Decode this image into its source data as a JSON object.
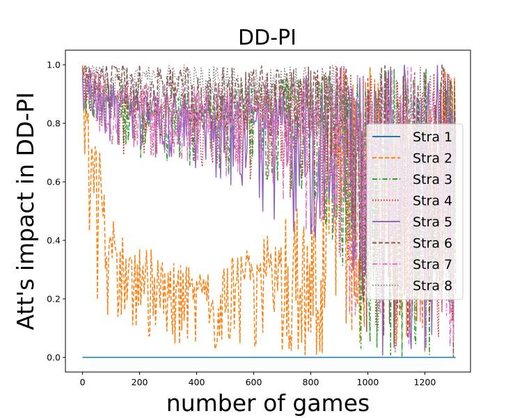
{
  "chart_data": {
    "type": "line",
    "title": "DD-PI",
    "xlabel": "number of games",
    "ylabel": "Att's impact in DD-PI",
    "xlim": [
      -60,
      1360
    ],
    "ylim": [
      -0.05,
      1.05
    ],
    "xticks": [
      0,
      200,
      400,
      600,
      800,
      1000,
      1200
    ],
    "xtick_labels": [
      "0",
      "200",
      "400",
      "600",
      "800",
      "1000",
      "1200"
    ],
    "yticks": [
      0.0,
      0.2,
      0.4,
      0.6,
      0.8,
      1.0
    ],
    "ytick_labels": [
      "0.0",
      "0.2",
      "0.4",
      "0.6",
      "0.8",
      "1.0"
    ],
    "x_range": [
      0,
      1310
    ],
    "grid": false,
    "legend_position": "center-right",
    "series": [
      {
        "name": "Stra 1",
        "color": "#1f77b4",
        "style": "solid",
        "band": {
          "x": [
            0,
            1310
          ],
          "low": [
            0.0,
            0.0
          ],
          "high": [
            0.0,
            0.0
          ]
        }
      },
      {
        "name": "Stra 2",
        "color": "#ff7f0e",
        "style": "dashed",
        "band": {
          "x": [
            0,
            30,
            60,
            100,
            200,
            400,
            600,
            800,
            900,
            970,
            1000,
            1310
          ],
          "low": [
            0.8,
            0.3,
            0.05,
            0.1,
            0.08,
            0.03,
            0.02,
            0.0,
            0.0,
            0.0,
            0.0,
            0.0
          ],
          "high": [
            1.0,
            0.95,
            0.7,
            0.5,
            0.4,
            0.3,
            0.38,
            0.55,
            1.0,
            1.0,
            1.0,
            1.0
          ]
        }
      },
      {
        "name": "Stra 3",
        "color": "#2ca02c",
        "style": "dashdot",
        "band": {
          "x": [
            0,
            100,
            200,
            400,
            600,
            800,
            900,
            970,
            1000,
            1310
          ],
          "low": [
            0.85,
            0.7,
            0.68,
            0.65,
            0.6,
            0.55,
            0.35,
            0.0,
            0.0,
            0.0
          ],
          "high": [
            1.0,
            0.95,
            0.92,
            0.9,
            0.93,
            0.97,
            1.0,
            1.0,
            1.0,
            1.0
          ]
        }
      },
      {
        "name": "Stra 4",
        "color": "#d62728",
        "style": "dotted",
        "band": {
          "x": [
            0,
            100,
            200,
            400,
            600,
            800,
            900,
            970,
            1000,
            1310
          ],
          "low": [
            0.85,
            0.7,
            0.68,
            0.66,
            0.58,
            0.52,
            0.35,
            0.0,
            0.0,
            0.0
          ],
          "high": [
            1.0,
            0.95,
            0.92,
            0.9,
            0.93,
            0.97,
            1.0,
            1.0,
            1.0,
            1.0
          ]
        }
      },
      {
        "name": "Stra 5",
        "color": "#9467bd",
        "style": "solid",
        "band": {
          "x": [
            0,
            100,
            200,
            400,
            600,
            800,
            900,
            970,
            1000,
            1310
          ],
          "low": [
            0.85,
            0.72,
            0.7,
            0.64,
            0.52,
            0.38,
            0.25,
            0.0,
            0.0,
            0.0
          ],
          "high": [
            1.0,
            0.95,
            0.92,
            0.9,
            0.93,
            0.97,
            1.0,
            1.0,
            1.0,
            1.0
          ]
        }
      },
      {
        "name": "Stra 6",
        "color": "#8c564b",
        "style": "dashed",
        "band": {
          "x": [
            0,
            100,
            200,
            400,
            600,
            800,
            900,
            1000,
            1310
          ],
          "low": [
            0.95,
            0.83,
            0.8,
            0.78,
            0.76,
            0.72,
            0.65,
            0.0,
            0.0
          ],
          "high": [
            1.0,
            1.0,
            1.0,
            1.0,
            1.0,
            1.0,
            1.0,
            1.0,
            1.0
          ]
        }
      },
      {
        "name": "Stra 7",
        "color": "#e377c2",
        "style": "dashdot",
        "band": {
          "x": [
            0,
            100,
            200,
            400,
            600,
            800,
            900,
            970,
            1000,
            1310
          ],
          "low": [
            0.85,
            0.72,
            0.7,
            0.66,
            0.55,
            0.4,
            0.3,
            0.0,
            0.0,
            0.0
          ],
          "high": [
            1.0,
            0.97,
            0.95,
            0.93,
            0.95,
            0.98,
            1.0,
            1.0,
            1.0,
            1.0
          ]
        }
      },
      {
        "name": "Stra 8",
        "color": "#7f7f7f",
        "style": "dotted",
        "band": {
          "x": [
            0,
            100,
            200,
            400,
            600,
            800,
            900,
            1000,
            1310
          ],
          "low": [
            0.95,
            0.87,
            0.85,
            0.82,
            0.8,
            0.75,
            0.7,
            0.0,
            0.0
          ],
          "high": [
            1.0,
            1.0,
            1.0,
            1.0,
            1.0,
            1.0,
            1.0,
            1.0,
            1.0
          ]
        }
      }
    ]
  }
}
